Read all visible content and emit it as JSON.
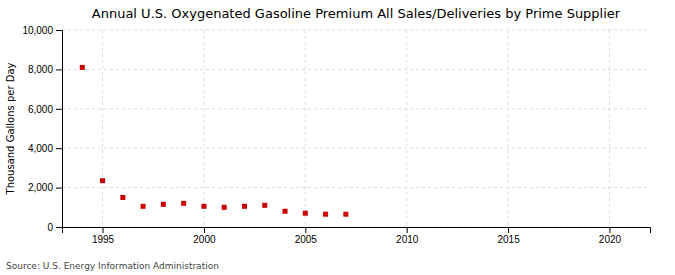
{
  "chart_data": {
    "type": "scatter",
    "title": "Annual U.S. Oxygenated Gasoline Premium All Sales/Deliveries by Prime Supplier",
    "ylabel": "Thousand Gallons per Day",
    "source": "Source: U.S. Energy Information Administration",
    "x": [
      1994,
      1995,
      1996,
      1997,
      1998,
      1999,
      2000,
      2001,
      2002,
      2003,
      2004,
      2005,
      2006,
      2007
    ],
    "y": [
      8100,
      2350,
      1500,
      1050,
      1150,
      1200,
      1050,
      1000,
      1050,
      1100,
      800,
      700,
      650,
      650
    ],
    "color": "#cc0000",
    "marker": "square",
    "xlim": [
      1993.0,
      2022.0
    ],
    "ylim": [
      0,
      10000
    ],
    "xticks": [
      1995,
      2000,
      2005,
      2010,
      2015,
      2020
    ],
    "yticks": [
      0,
      {
        "value": 2000,
        "label": "2,000"
      },
      {
        "value": 4000,
        "label": "4,000"
      },
      {
        "value": 6000,
        "label": "6,000"
      },
      {
        "value": 8000,
        "label": "8,000"
      },
      {
        "value": 10000,
        "label": "10,000"
      }
    ],
    "grid": true
  }
}
